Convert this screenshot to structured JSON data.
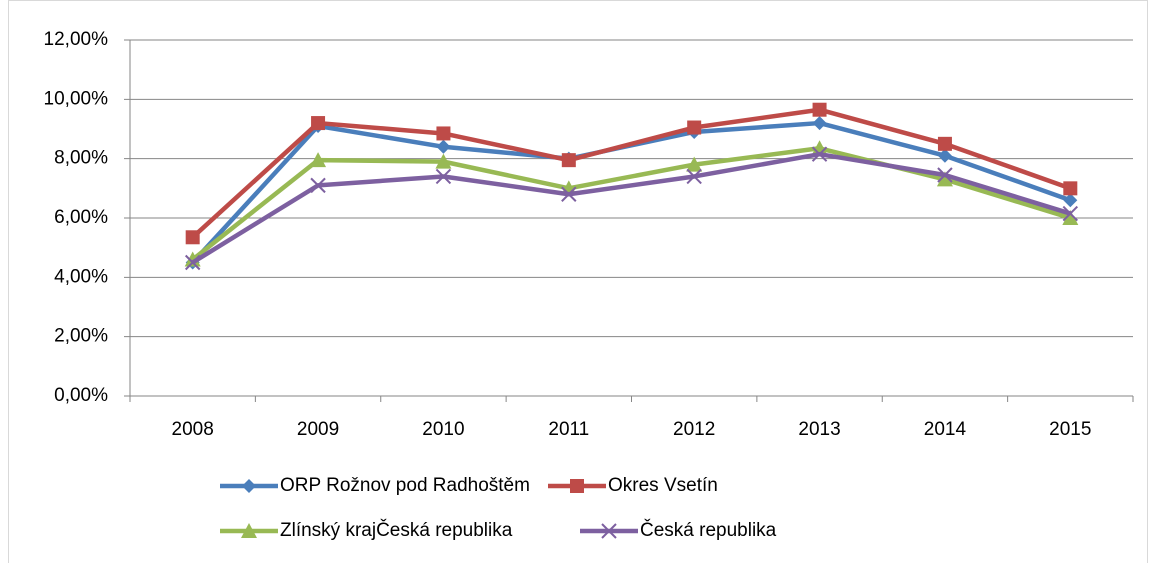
{
  "chart_data": {
    "type": "line",
    "categories": [
      "2008",
      "2009",
      "2010",
      "2011",
      "2012",
      "2013",
      "2014",
      "2015"
    ],
    "series": [
      {
        "name": "ORP Rožnov pod Radhoštěm",
        "color": "#4a7ebb",
        "marker": "diamond",
        "values": [
          4.5,
          9.1,
          8.4,
          8.0,
          8.9,
          9.2,
          8.1,
          6.6
        ]
      },
      {
        "name": "Okres Vsetín",
        "color": "#be4b48",
        "marker": "square",
        "values": [
          5.35,
          9.2,
          8.85,
          7.95,
          9.05,
          9.65,
          8.5,
          7.0
        ]
      },
      {
        "name": "Zlínský krajČeská republika",
        "color": "#98b954",
        "marker": "triangle",
        "values": [
          4.6,
          7.95,
          7.9,
          7.0,
          7.8,
          8.35,
          7.3,
          6.0
        ]
      },
      {
        "name": "Česká republika",
        "color": "#7d60a0",
        "marker": "x",
        "values": [
          4.5,
          7.1,
          7.4,
          6.8,
          7.4,
          8.15,
          7.45,
          6.15
        ]
      }
    ],
    "ylim": [
      0,
      12
    ],
    "yticks": [
      {
        "value": 0,
        "label": "0,00%"
      },
      {
        "value": 2,
        "label": "2,00%"
      },
      {
        "value": 4,
        "label": "4,00%"
      },
      {
        "value": 6,
        "label": "6,00%"
      },
      {
        "value": 8,
        "label": "8,00%"
      },
      {
        "value": 10,
        "label": "10,00%"
      },
      {
        "value": 12,
        "label": "12,00%"
      }
    ],
    "grid": true,
    "legend": "bottom"
  }
}
